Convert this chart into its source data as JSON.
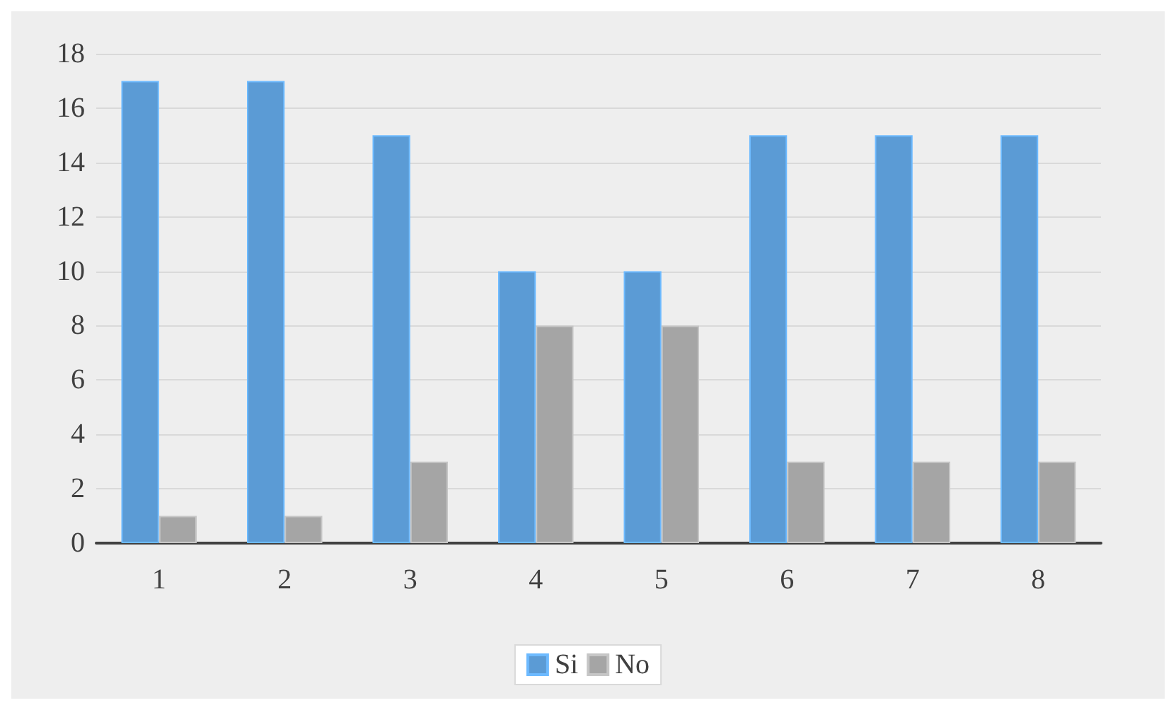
{
  "chart_data": {
    "type": "bar",
    "categories": [
      "1",
      "2",
      "3",
      "4",
      "5",
      "6",
      "7",
      "8"
    ],
    "series": [
      {
        "name": "Si",
        "color": "#5b9bd5",
        "values": [
          17,
          17,
          15,
          10,
          10,
          15,
          15,
          15
        ]
      },
      {
        "name": "No",
        "color": "#a5a5a5",
        "values": [
          1,
          1,
          3,
          8,
          8,
          3,
          3,
          3
        ]
      }
    ],
    "ylim": [
      0,
      18
    ],
    "yticks": [
      0,
      2,
      4,
      6,
      8,
      10,
      12,
      14,
      16,
      18
    ],
    "grid": "y",
    "legend": "bottom"
  }
}
